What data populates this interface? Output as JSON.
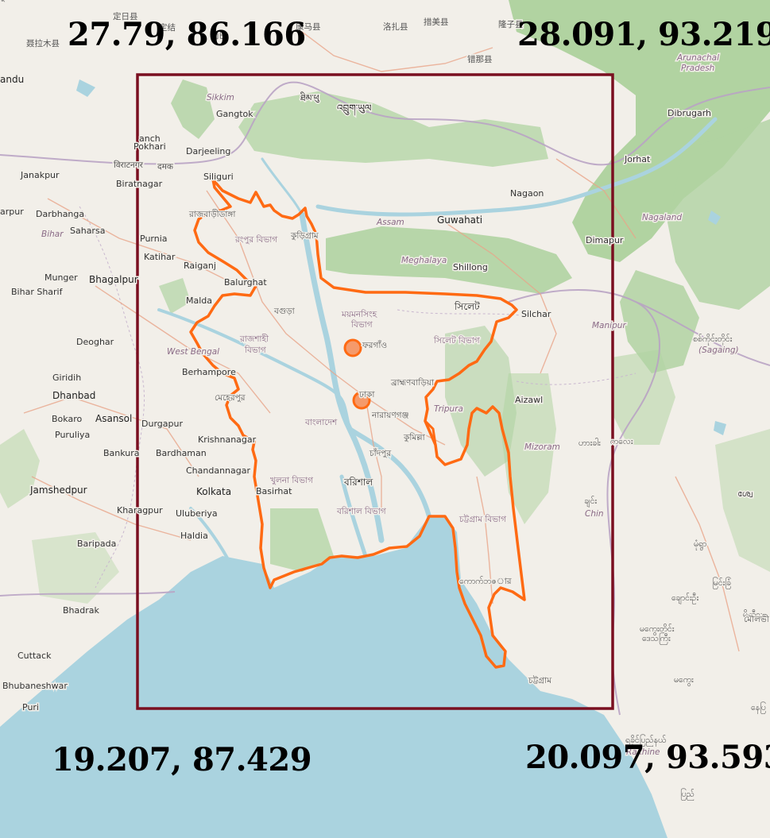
{
  "corners": {
    "top_left": "27.79, 86.166",
    "top_right": "28.091, 93.219",
    "bottom_left": "19.207, 87.429",
    "bottom_right": "20.097, 93.593"
  },
  "colors": {
    "land": "#f2efe9",
    "sea": "#aad3df",
    "forest": "#add19e",
    "boundary": "#ff6a13",
    "bbox": "#7a0f20",
    "marker_fill": "#f59a6b"
  },
  "markers": [
    {
      "name": "marker-north"
    },
    {
      "name": "marker-dhaka"
    }
  ],
  "places": [
    {
      "text": "定日县",
      "cls": "place bn"
    },
    {
      "text": "聂拉木县",
      "cls": "place bn"
    },
    {
      "text": "定结",
      "cls": "place bn"
    },
    {
      "text": "岗巴",
      "cls": "place bn"
    },
    {
      "text": "康马县",
      "cls": "place bn"
    },
    {
      "text": "洛扎县",
      "cls": "place bn"
    },
    {
      "text": "措美县",
      "cls": "place bn"
    },
    {
      "text": "隆子县",
      "cls": "place bn"
    },
    {
      "text": "错那县",
      "cls": "place bn"
    },
    {
      "text": "Arunachal",
      "cls": "place region"
    },
    {
      "text": "Pradesh",
      "cls": "place region"
    },
    {
      "text": "andu",
      "cls": "place city"
    },
    {
      "text": "Sikkim",
      "cls": "place region"
    },
    {
      "text": "Gangtok",
      "cls": "place"
    },
    {
      "text": "ཐིམ་ཕུ",
      "cls": "place"
    },
    {
      "text": "འབྲུག་ཡུལ",
      "cls": "place city"
    },
    {
      "text": "Dibrugarh",
      "cls": "place"
    },
    {
      "text": "Jorhat",
      "cls": "place"
    },
    {
      "text": "anch",
      "cls": "place"
    },
    {
      "text": "Pokhari",
      "cls": "place"
    },
    {
      "text": "Darjeeling",
      "cls": "place"
    },
    {
      "text": "Janakpur",
      "cls": "place"
    },
    {
      "text": "विराटनगर",
      "cls": "place bn"
    },
    {
      "text": "दमक",
      "cls": "place bn"
    },
    {
      "text": "Biratnagar",
      "cls": "place"
    },
    {
      "text": "Siliguri",
      "cls": "place"
    },
    {
      "text": "Nagaon",
      "cls": "place"
    },
    {
      "text": "Nagaland",
      "cls": "place region"
    },
    {
      "text": "arpur",
      "cls": "place"
    },
    {
      "text": "Darbhanga",
      "cls": "place"
    },
    {
      "text": "রাজবাড়ীডাঙ্গা",
      "cls": "place bn"
    },
    {
      "text": "Assam",
      "cls": "place region"
    },
    {
      "text": "Guwahati",
      "cls": "place city"
    },
    {
      "text": "Bihar",
      "cls": "place region"
    },
    {
      "text": "Saharsa",
      "cls": "place"
    },
    {
      "text": "কুড়িগ্রাম",
      "cls": "place bn"
    },
    {
      "text": "Dimapur",
      "cls": "place"
    },
    {
      "text": "Purnia",
      "cls": "place"
    },
    {
      "text": "রংপুর বিভাগ",
      "cls": "place admin"
    },
    {
      "text": "Meghalaya",
      "cls": "place region"
    },
    {
      "text": "Katihar",
      "cls": "place"
    },
    {
      "text": "Raiganj",
      "cls": "place"
    },
    {
      "text": "Shillong",
      "cls": "place"
    },
    {
      "text": "Munger",
      "cls": "place"
    },
    {
      "text": "Bhagalpur",
      "cls": "place city"
    },
    {
      "text": "Balurghat",
      "cls": "place"
    },
    {
      "text": "Bihar Sharif",
      "cls": "place"
    },
    {
      "text": "Malda",
      "cls": "place"
    },
    {
      "text": "বগুড়া",
      "cls": "place bn"
    },
    {
      "text": "ময়মনসিংহ",
      "cls": "place admin"
    },
    {
      "text": "বিভাগ",
      "cls": "place admin"
    },
    {
      "text": "সিলেট",
      "cls": "place city"
    },
    {
      "text": "Silchar",
      "cls": "place"
    },
    {
      "text": "Manipur",
      "cls": "place region"
    },
    {
      "text": "রাজশাহী",
      "cls": "place admin"
    },
    {
      "text": "বিভাগ",
      "cls": "place admin"
    },
    {
      "text": "সিলেট বিভাগ",
      "cls": "place admin"
    },
    {
      "text": "ফরগাঁও",
      "cls": "place bn"
    },
    {
      "text": "စစ်ကိုင်းတိုင်း",
      "cls": "place bn"
    },
    {
      "text": "(Sagaing)",
      "cls": "place region"
    },
    {
      "text": "Deoghar",
      "cls": "place"
    },
    {
      "text": "West Bengal",
      "cls": "place region"
    },
    {
      "text": "Giridih",
      "cls": "place"
    },
    {
      "text": "Berhampore",
      "cls": "place"
    },
    {
      "text": "ব্রাহ্মণবাড়িয়া",
      "cls": "place bn"
    },
    {
      "text": "Dhanbad",
      "cls": "place city"
    },
    {
      "text": "মেহেরপুর",
      "cls": "place bn"
    },
    {
      "text": "ঢাকা",
      "cls": "place bn"
    },
    {
      "text": "Aizawl",
      "cls": "place"
    },
    {
      "text": "Bokaro",
      "cls": "place"
    },
    {
      "text": "Asansol",
      "cls": "place city"
    },
    {
      "text": "Tripura",
      "cls": "place region"
    },
    {
      "text": "নারায়ণগঞ্জ",
      "cls": "place bn"
    },
    {
      "text": "Durgapur",
      "cls": "place"
    },
    {
      "text": "বাংলাদেশ",
      "cls": "place admin"
    },
    {
      "text": "Puruliya",
      "cls": "place"
    },
    {
      "text": "কুমিল্লা",
      "cls": "place bn"
    },
    {
      "text": "ဟားခါး",
      "cls": "place bn"
    },
    {
      "text": "Krishnanagar",
      "cls": "place"
    },
    {
      "text": "Mizoram",
      "cls": "place region"
    },
    {
      "text": "Bankura",
      "cls": "place"
    },
    {
      "text": "Bardhaman",
      "cls": "place"
    },
    {
      "text": "চাঁদপুর",
      "cls": "place bn"
    },
    {
      "text": "Chandannagar",
      "cls": "place"
    },
    {
      "text": "Jamshedpur",
      "cls": "place city"
    },
    {
      "text": "খুলনা বিভাগ",
      "cls": "place admin"
    },
    {
      "text": "বরিশাল",
      "cls": "place city"
    },
    {
      "text": "ချင်း",
      "cls": "place bn"
    },
    {
      "text": "Kolkata",
      "cls": "place city"
    },
    {
      "text": "Basirhat",
      "cls": "place"
    },
    {
      "text": "Kharagpur",
      "cls": "place"
    },
    {
      "text": "Uluberiya",
      "cls": "place"
    },
    {
      "text": "বরিশাল বিভাগ",
      "cls": "place admin"
    },
    {
      "text": "Chin",
      "cls": "place region"
    },
    {
      "text": "চট্টগ্রাম বিভাগ",
      "cls": "place admin"
    },
    {
      "text": "Baripada",
      "cls": "place"
    },
    {
      "text": "Haldia",
      "cls": "place"
    },
    {
      "text": "မုံရွာ",
      "cls": "place bn"
    },
    {
      "text": "ကောက်ဘဇার",
      "cls": "place bn"
    },
    {
      "text": "Bhadrak",
      "cls": "place"
    },
    {
      "text": "ကလေး",
      "cls": "place bn"
    },
    {
      "text": "မြင်းခြံ",
      "cls": "place bn"
    },
    {
      "text": "ချောင်းဦး",
      "cls": "place bn"
    },
    {
      "text": "မိတ္ထီလာ",
      "cls": "place bn"
    },
    {
      "text": "မကွေးတိုင်း",
      "cls": "place bn"
    },
    {
      "text": "ဒေသကြီး",
      "cls": "place bn"
    },
    {
      "text": "Cuttack",
      "cls": "place"
    },
    {
      "text": "Bhubaneshwar",
      "cls": "place"
    },
    {
      "text": "မကွေး",
      "cls": "place bn"
    },
    {
      "text": "চট্টগ্রাম",
      "cls": "place bn"
    },
    {
      "text": "Puri",
      "cls": "place"
    },
    {
      "text": "ရခိုင်ပြည်နယ်",
      "cls": "place bn"
    },
    {
      "text": "Rakhine",
      "cls": "place region"
    },
    {
      "text": "ပြည်",
      "cls": "place bn"
    },
    {
      "text": "နေပြ",
      "cls": "place bn"
    },
    {
      "text": "ശ്വേ",
      "cls": "place bn"
    },
    {
      "text": "মৌলভী",
      "cls": "place bn"
    },
    {
      "text": "মুল",
      "cls": "place bn"
    }
  ]
}
